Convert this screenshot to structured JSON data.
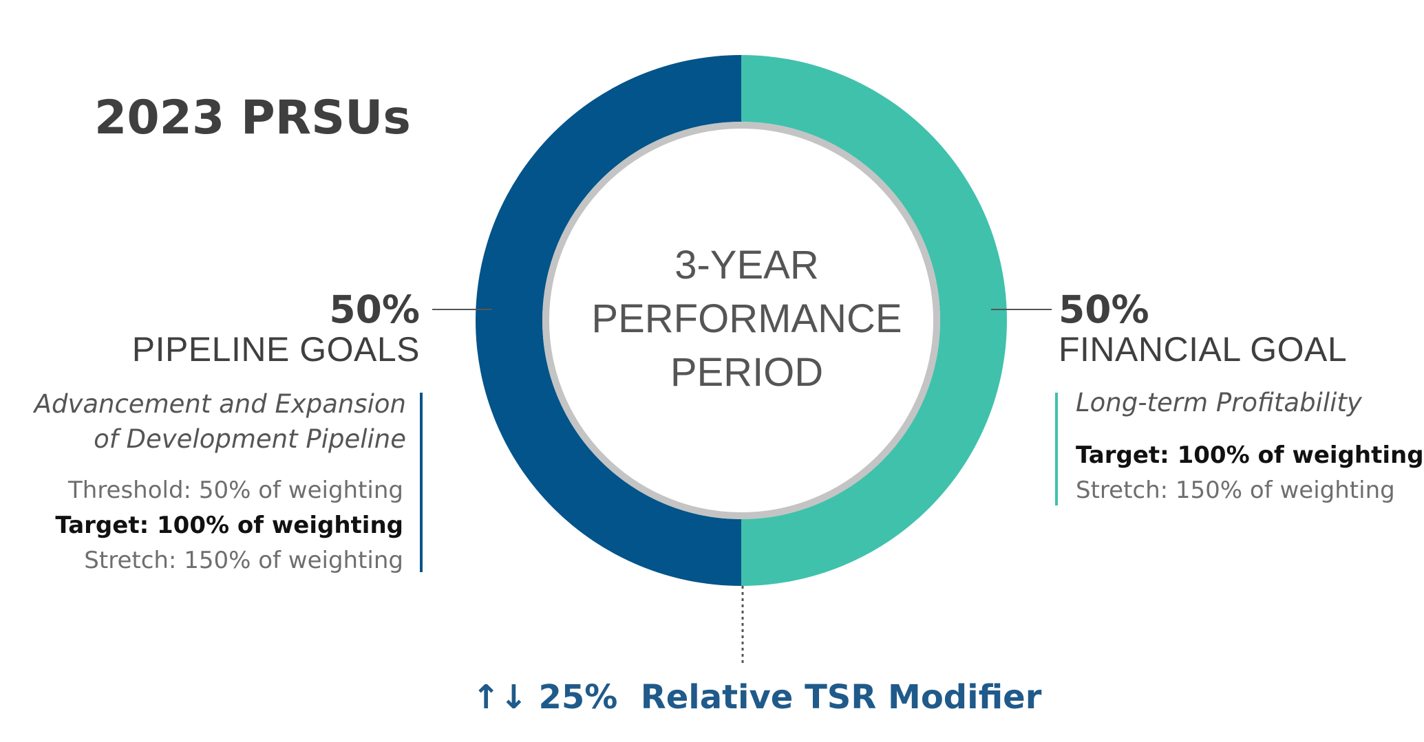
{
  "title": "2023 PRSUs",
  "center": {
    "line1": "3-YEAR",
    "line2": "PERFORMANCE",
    "line3": "PERIOD"
  },
  "colors": {
    "pipeline": "#02548a",
    "financial": "#40c1ac",
    "inner_ring": "#c4c4c4",
    "modifier_text": "#1f5a8a"
  },
  "chart_data": {
    "type": "pie",
    "donut": true,
    "slices": [
      {
        "name": "PIPELINE GOALS",
        "value": 50
      },
      {
        "name": "FINANCIAL GOAL",
        "value": 50
      }
    ]
  },
  "left": {
    "percent": "50%",
    "goal": "PIPELINE GOALS",
    "desc_line1": "Advancement and Expansion",
    "desc_line2": "of Development Pipeline",
    "threshold": "Threshold: 50% of weighting",
    "target": "Target: 100% of weighting",
    "stretch": "Stretch: 150% of weighting"
  },
  "right": {
    "percent": "50%",
    "goal": "FINANCIAL GOAL",
    "desc": "Long-term Profitability",
    "target": "Target: 100% of weighting",
    "stretch": "Stretch: 150% of weighting"
  },
  "modifier": {
    "arrows": "↑↓",
    "text": "25%  Relative TSR Modifier"
  }
}
